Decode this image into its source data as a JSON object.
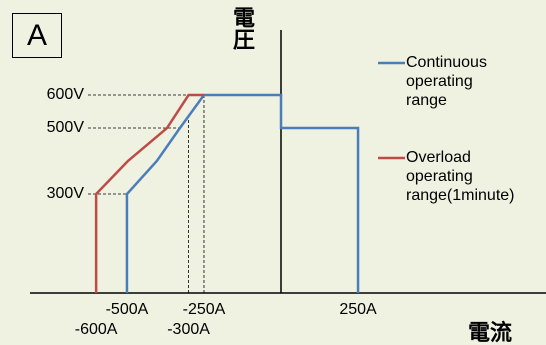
{
  "chart_data": {
    "type": "line",
    "title": "A",
    "ylabel": "電圧",
    "xlabel": "電流",
    "series": [
      {
        "name": "Continuous operating range",
        "color": "#4a7ebb",
        "x": [
          -500,
          -500,
          -403,
          -328,
          -250,
          0,
          0,
          250,
          250
        ],
        "values": [
          0,
          300,
          400,
          500,
          600,
          600,
          500,
          500,
          0
        ]
      },
      {
        "name": "Overload operating range(1minute)",
        "color": "#be4b48",
        "x": [
          -600,
          -600,
          -497,
          -370,
          -300,
          -250
        ],
        "values": [
          0,
          300,
          400,
          500,
          600,
          600
        ]
      }
    ],
    "xlim": [
      -912,
      860
    ],
    "ylim": [
      0,
      888
    ],
    "xticks": [
      {
        "value": -600,
        "label": "-600A"
      },
      {
        "value": -500,
        "label": "-500A"
      },
      {
        "value": -300,
        "label": "-300A"
      },
      {
        "value": -250,
        "label": "-250A"
      },
      {
        "value": 250,
        "label": "250A"
      }
    ],
    "yticks": [
      {
        "value": 300,
        "label": "300V"
      },
      {
        "value": 500,
        "label": "500V"
      },
      {
        "value": 600,
        "label": "600V"
      }
    ]
  }
}
